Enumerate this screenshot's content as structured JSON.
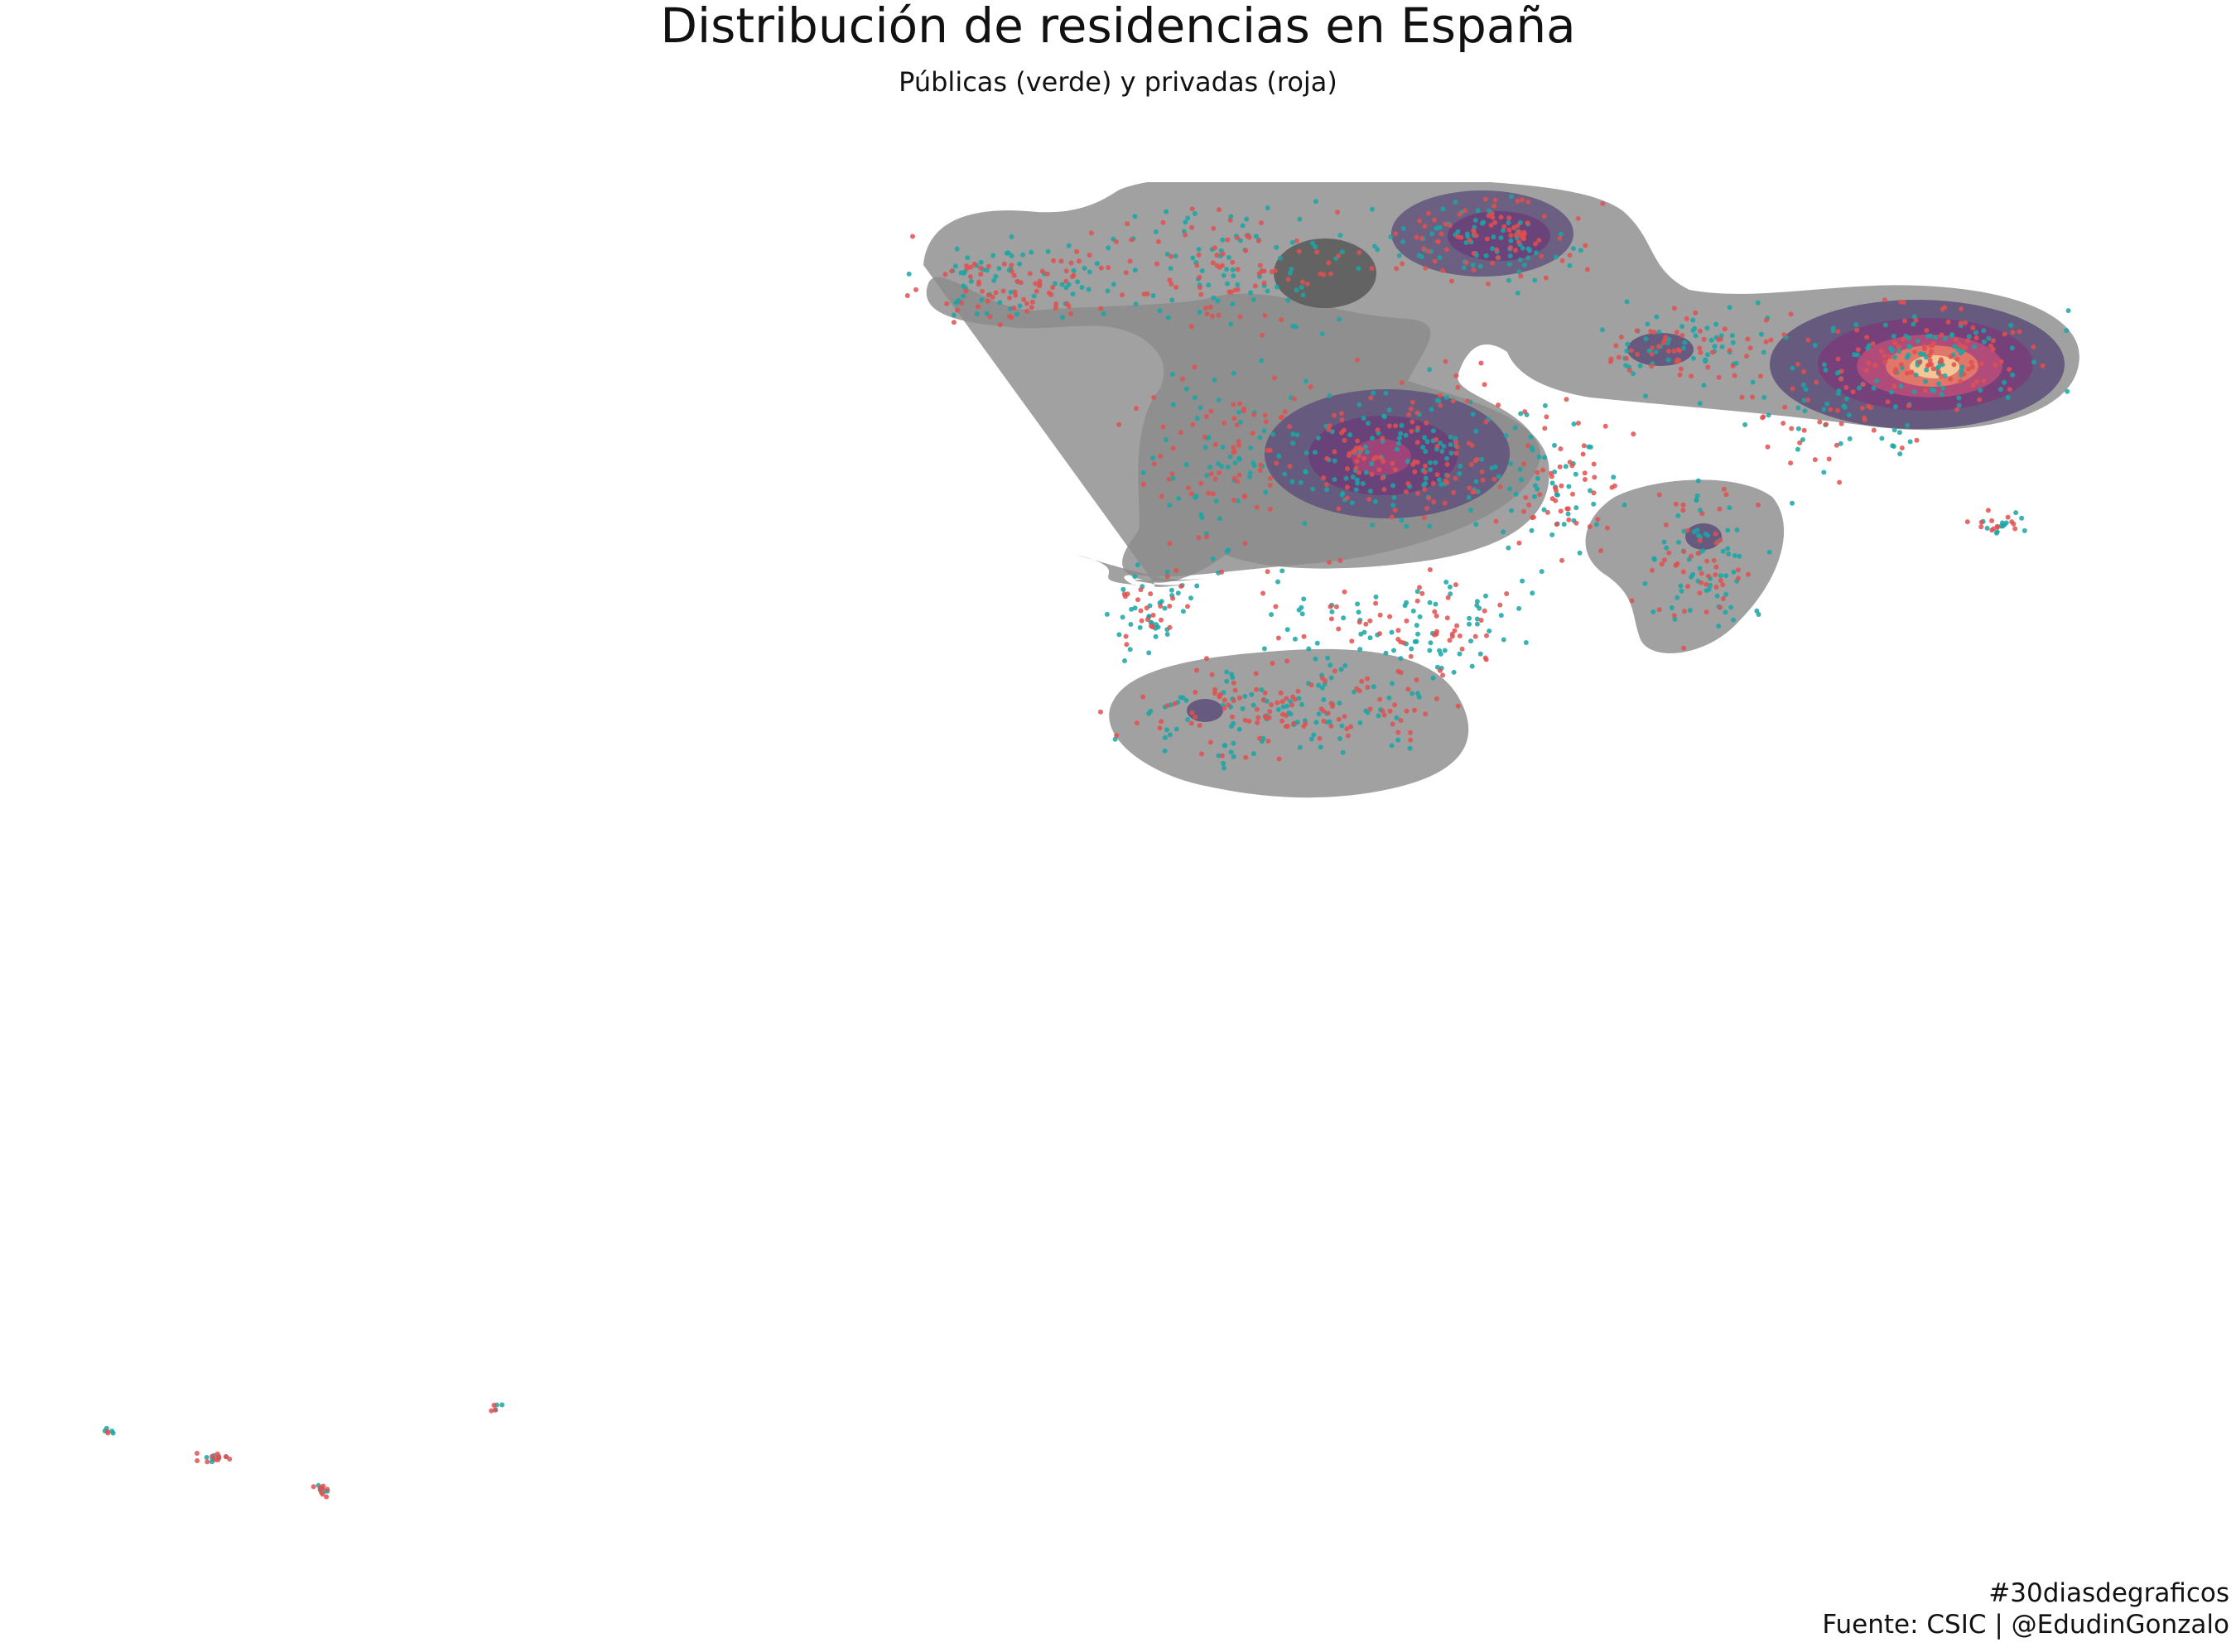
{
  "title": "Distribución de residencias en España",
  "subtitle": "Públicas (verde) y privadas (roja)",
  "caption": {
    "hashtag": "#30diasdegraficos",
    "source": "Fuente: CSIC | @EdudinGonzalo"
  },
  "legend_colors": {
    "publicas": "#1aa6a6",
    "privadas": "#e05050",
    "density_low": "#6f6f6f",
    "density_mid": "#5a2a6a",
    "density_high": "#f0c090"
  },
  "map_layers": [
    "density-contours",
    "public-residence-points",
    "private-residence-points"
  ]
}
